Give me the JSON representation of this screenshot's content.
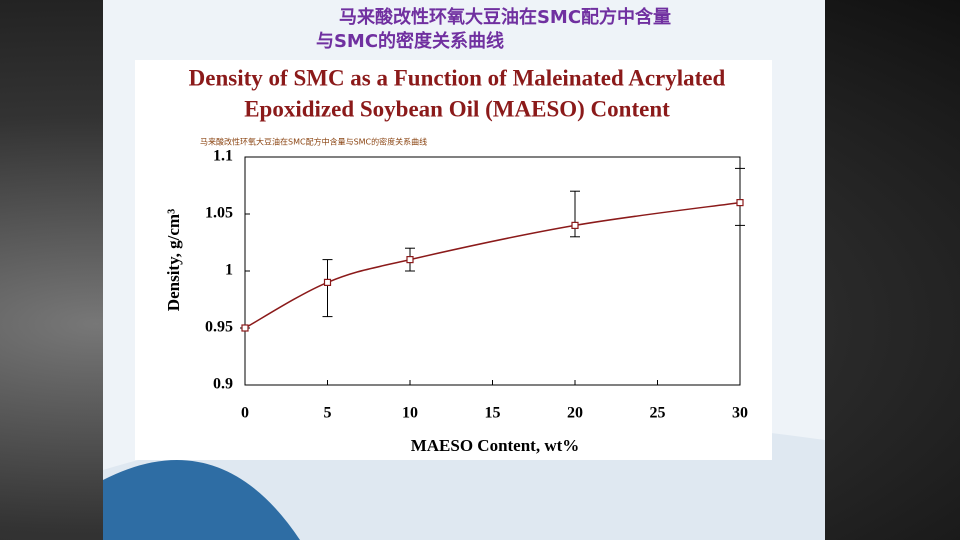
{
  "slide_title": [
    "马来酸改性环氧大豆油在SMC配方中含量",
    "与SMC的密度关系曲线"
  ],
  "chart_data": {
    "type": "line",
    "title": [
      "Density of SMC as a Function of Maleinated Acrylated",
      "Epoxidized Soybean Oil (MAESO) Content"
    ],
    "subtitle": "马来酸改性环氧大豆油在SMC配方中含量与SMC的密度关系曲线",
    "x_label": "MAESO Content, wt%",
    "y_label": "Density, g/cm³",
    "x": [
      0,
      5,
      10,
      20,
      30
    ],
    "series": [
      {
        "color": "#8b1a1a",
        "values": [
          0.95,
          0.99,
          1.01,
          1.04,
          1.06
        ],
        "error_minus": [
          0,
          0.03,
          0.01,
          0.01,
          0.02
        ],
        "error_plus": [
          0,
          0.02,
          0.01,
          0.03,
          0.03
        ]
      }
    ],
    "xlim": [
      0,
      30
    ],
    "ylim": [
      0.9,
      1.1
    ],
    "xticks": [
      0,
      5,
      10,
      15,
      20,
      25,
      30
    ],
    "yticks": [
      0.9,
      0.95,
      1,
      1.05,
      1.1
    ]
  }
}
